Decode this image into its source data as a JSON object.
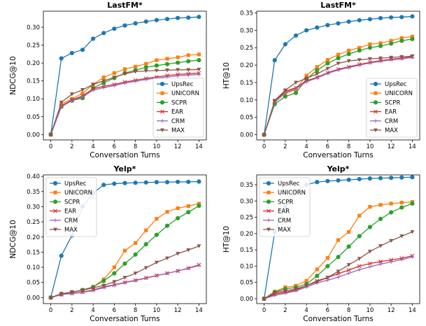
{
  "chart_data": [
    {
      "type": "line",
      "title": "LastFM*",
      "xlabel": "Conversation Turns",
      "ylabel": "NDCG@10",
      "x": [
        0,
        1,
        2,
        3,
        4,
        5,
        6,
        7,
        8,
        9,
        10,
        11,
        12,
        13,
        14
      ],
      "xticks": [
        0,
        2,
        4,
        6,
        8,
        10,
        12,
        14
      ],
      "ylim": [
        -0.015,
        0.345
      ],
      "yticks": [
        "0.00",
        "0.05",
        "0.10",
        "0.15",
        "0.20",
        "0.25",
        "0.30"
      ],
      "legend": "bottom-right",
      "series": [
        {
          "name": "UpsRec",
          "color": "#1f77b4",
          "marker": "circle",
          "values": [
            0.0,
            0.213,
            0.228,
            0.237,
            0.268,
            0.284,
            0.296,
            0.305,
            0.311,
            0.316,
            0.32,
            0.323,
            0.326,
            0.327,
            0.329
          ]
        },
        {
          "name": "UNICORN",
          "color": "#ff7f0e",
          "marker": "square",
          "values": [
            0.0,
            0.085,
            0.1,
            0.115,
            0.14,
            0.16,
            0.172,
            0.183,
            0.19,
            0.198,
            0.208,
            0.212,
            0.216,
            0.222,
            0.224
          ]
        },
        {
          "name": "SCPR",
          "color": "#2ca02c",
          "marker": "circle",
          "values": [
            0.0,
            0.078,
            0.095,
            0.102,
            0.13,
            0.145,
            0.158,
            0.172,
            0.18,
            0.188,
            0.193,
            0.197,
            0.201,
            0.205,
            0.208
          ]
        },
        {
          "name": "EAR",
          "color": "#d62728",
          "marker": "x",
          "values": [
            0.0,
            0.08,
            0.097,
            0.108,
            0.128,
            0.135,
            0.14,
            0.147,
            0.152,
            0.157,
            0.161,
            0.165,
            0.168,
            0.17,
            0.172
          ]
        },
        {
          "name": "CRM",
          "color": "#9467bd",
          "marker": "plus",
          "values": [
            0.0,
            0.078,
            0.095,
            0.106,
            0.124,
            0.131,
            0.137,
            0.144,
            0.149,
            0.154,
            0.158,
            0.161,
            0.164,
            0.166,
            0.168
          ]
        },
        {
          "name": "MAX",
          "color": "#8c564b",
          "marker": "triangle",
          "values": [
            0.0,
            0.09,
            0.113,
            0.125,
            0.14,
            0.15,
            0.16,
            0.17,
            0.176,
            0.178,
            0.179,
            0.18,
            0.181,
            0.181,
            0.182
          ]
        }
      ]
    },
    {
      "type": "line",
      "title": "LastFM*",
      "xlabel": "Conversation Turns",
      "ylabel": "HT@10",
      "x": [
        0,
        1,
        2,
        3,
        4,
        5,
        6,
        7,
        8,
        9,
        10,
        11,
        12,
        13,
        14
      ],
      "xticks": [
        0,
        2,
        4,
        6,
        8,
        10,
        12,
        14
      ],
      "ylim": [
        -0.015,
        0.355
      ],
      "yticks": [
        "0.00",
        "0.05",
        "0.10",
        "0.15",
        "0.20",
        "0.25",
        "0.30",
        "0.35"
      ],
      "legend": "bottom-right",
      "series": [
        {
          "name": "UpsRec",
          "color": "#1f77b4",
          "marker": "circle",
          "values": [
            0.0,
            0.214,
            0.26,
            0.285,
            0.3,
            0.308,
            0.315,
            0.32,
            0.325,
            0.329,
            0.332,
            0.335,
            0.337,
            0.338,
            0.34
          ]
        },
        {
          "name": "UNICORN",
          "color": "#ff7f0e",
          "marker": "square",
          "values": [
            0.0,
            0.095,
            0.118,
            0.13,
            0.17,
            0.195,
            0.215,
            0.23,
            0.242,
            0.25,
            0.26,
            0.263,
            0.27,
            0.278,
            0.282
          ]
        },
        {
          "name": "SCPR",
          "color": "#2ca02c",
          "marker": "circle",
          "values": [
            0.0,
            0.088,
            0.11,
            0.12,
            0.16,
            0.185,
            0.205,
            0.22,
            0.232,
            0.242,
            0.25,
            0.255,
            0.262,
            0.27,
            0.275
          ]
        },
        {
          "name": "EAR",
          "color": "#d62728",
          "marker": "x",
          "values": [
            0.0,
            0.095,
            0.125,
            0.135,
            0.155,
            0.165,
            0.178,
            0.188,
            0.195,
            0.202,
            0.208,
            0.213,
            0.217,
            0.22,
            0.224
          ]
        },
        {
          "name": "CRM",
          "color": "#9467bd",
          "marker": "plus",
          "values": [
            0.0,
            0.093,
            0.122,
            0.132,
            0.152,
            0.163,
            0.176,
            0.186,
            0.193,
            0.2,
            0.206,
            0.211,
            0.215,
            0.218,
            0.222
          ]
        },
        {
          "name": "MAX",
          "color": "#8c564b",
          "marker": "triangle",
          "values": [
            0.0,
            0.098,
            0.128,
            0.15,
            0.162,
            0.175,
            0.19,
            0.205,
            0.212,
            0.215,
            0.218,
            0.22,
            0.222,
            0.224,
            0.226
          ]
        }
      ]
    },
    {
      "type": "line",
      "title": "Yelp*",
      "xlabel": "Conversation Turns",
      "ylabel": "NDCG@10",
      "x": [
        0,
        1,
        2,
        3,
        4,
        5,
        6,
        7,
        8,
        9,
        10,
        11,
        12,
        13,
        14
      ],
      "xticks": [
        0,
        2,
        4,
        6,
        8,
        10,
        12,
        14
      ],
      "ylim": [
        -0.02,
        0.405
      ],
      "yticks": [
        "0.00",
        "0.05",
        "0.10",
        "0.15",
        "0.20",
        "0.25",
        "0.30",
        "0.35",
        "0.40"
      ],
      "legend": "top-left",
      "series": [
        {
          "name": "UpsRec",
          "color": "#1f77b4",
          "marker": "circle",
          "values": [
            0.0,
            0.138,
            0.205,
            0.3,
            0.345,
            0.372,
            0.376,
            0.378,
            0.379,
            0.38,
            0.381,
            0.381,
            0.382,
            0.382,
            0.383
          ]
        },
        {
          "name": "UNICORN",
          "color": "#ff7f0e",
          "marker": "square",
          "values": [
            0.0,
            0.01,
            0.018,
            0.025,
            0.035,
            0.06,
            0.1,
            0.155,
            0.18,
            0.222,
            0.26,
            0.283,
            0.295,
            0.302,
            0.31
          ]
        },
        {
          "name": "SCPR",
          "color": "#2ca02c",
          "marker": "circle",
          "values": [
            0.0,
            0.012,
            0.018,
            0.025,
            0.035,
            0.055,
            0.08,
            0.112,
            0.142,
            0.176,
            0.207,
            0.237,
            0.262,
            0.282,
            0.303
          ]
        },
        {
          "name": "EAR",
          "color": "#d62728",
          "marker": "x",
          "values": [
            0.0,
            0.01,
            0.014,
            0.018,
            0.025,
            0.035,
            0.042,
            0.05,
            0.057,
            0.065,
            0.073,
            0.08,
            0.088,
            0.097,
            0.108
          ]
        },
        {
          "name": "CRM",
          "color": "#9467bd",
          "marker": "plus",
          "values": [
            0.0,
            0.01,
            0.013,
            0.017,
            0.023,
            0.033,
            0.041,
            0.049,
            0.056,
            0.064,
            0.072,
            0.08,
            0.088,
            0.096,
            0.106
          ]
        },
        {
          "name": "MAX",
          "color": "#8c564b",
          "marker": "triangle",
          "values": [
            0.0,
            0.013,
            0.018,
            0.024,
            0.032,
            0.04,
            0.052,
            0.066,
            0.08,
            0.098,
            0.116,
            0.13,
            0.145,
            0.157,
            0.17
          ]
        }
      ]
    },
    {
      "type": "line",
      "title": "Yelp*",
      "xlabel": "Conversation Turns",
      "ylabel": "HT@10",
      "x": [
        0,
        1,
        2,
        3,
        4,
        5,
        6,
        7,
        8,
        9,
        10,
        11,
        12,
        13,
        14
      ],
      "xticks": [
        0,
        2,
        4,
        6,
        8,
        10,
        12,
        14
      ],
      "ylim": [
        -0.015,
        0.38
      ],
      "yticks": [
        "0.00",
        "0.05",
        "0.10",
        "0.15",
        "0.20",
        "0.25",
        "0.30",
        "0.35"
      ],
      "legend": "top-left",
      "series": [
        {
          "name": "UpsRec",
          "color": "#1f77b4",
          "marker": "circle",
          "values": [
            0.0,
            0.205,
            0.28,
            0.33,
            0.35,
            0.358,
            0.361,
            0.363,
            0.365,
            0.367,
            0.369,
            0.37,
            0.371,
            0.372,
            0.373
          ]
        },
        {
          "name": "UNICORN",
          "color": "#ff7f0e",
          "marker": "square",
          "values": [
            0.0,
            0.022,
            0.035,
            0.04,
            0.055,
            0.09,
            0.125,
            0.18,
            0.205,
            0.255,
            0.282,
            0.288,
            0.292,
            0.295,
            0.297
          ]
        },
        {
          "name": "SCPR",
          "color": "#2ca02c",
          "marker": "circle",
          "values": [
            0.0,
            0.02,
            0.03,
            0.035,
            0.045,
            0.07,
            0.1,
            0.128,
            0.16,
            0.192,
            0.22,
            0.245,
            0.265,
            0.28,
            0.292
          ]
        },
        {
          "name": "EAR",
          "color": "#d62728",
          "marker": "x",
          "values": [
            0.0,
            0.014,
            0.02,
            0.027,
            0.04,
            0.055,
            0.065,
            0.077,
            0.088,
            0.1,
            0.108,
            0.114,
            0.119,
            0.124,
            0.132
          ]
        },
        {
          "name": "CRM",
          "color": "#9467bd",
          "marker": "plus",
          "values": [
            0.0,
            0.01,
            0.017,
            0.024,
            0.036,
            0.048,
            0.057,
            0.066,
            0.078,
            0.089,
            0.098,
            0.106,
            0.113,
            0.12,
            0.128
          ]
        },
        {
          "name": "MAX",
          "color": "#8c564b",
          "marker": "triangle",
          "values": [
            0.0,
            0.018,
            0.024,
            0.03,
            0.04,
            0.052,
            0.065,
            0.084,
            0.104,
            0.123,
            0.145,
            0.162,
            0.178,
            0.192,
            0.205
          ]
        }
      ]
    }
  ]
}
